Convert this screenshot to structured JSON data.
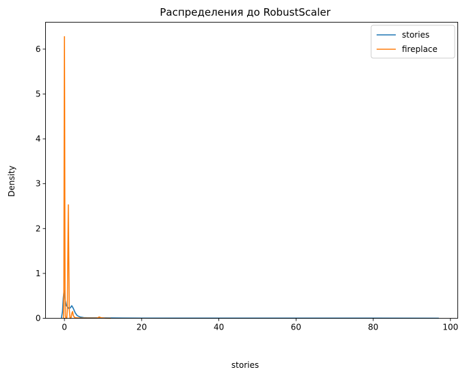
{
  "chart_data": {
    "type": "line",
    "title": "Распределения до RobustScaler",
    "xlabel": "stories",
    "ylabel": "Density",
    "xlim": [
      -4.9,
      101.9
    ],
    "ylim": [
      0,
      6.6
    ],
    "xticks": [
      0,
      20,
      40,
      60,
      80,
      100
    ],
    "yticks": [
      0,
      1,
      2,
      3,
      4,
      5,
      6
    ],
    "grid": false,
    "legend_position": "top-right",
    "series": [
      {
        "name": "stories",
        "color": "#1f77b4",
        "x": [
          -0.8,
          -0.5,
          -0.3,
          -0.1,
          0.0,
          0.2,
          0.5,
          0.8,
          1.1,
          1.5,
          1.9,
          2.3,
          2.8,
          3.3,
          4.0,
          5.0,
          6.0,
          8.0,
          10.0,
          15.0,
          20.0,
          40.0,
          60.0,
          80.0,
          97.0
        ],
        "y": [
          0.0,
          0.15,
          0.45,
          0.62,
          0.58,
          0.4,
          0.28,
          0.25,
          0.22,
          0.23,
          0.28,
          0.22,
          0.12,
          0.06,
          0.03,
          0.015,
          0.01,
          0.01,
          0.008,
          0.005,
          0.004,
          0.003,
          0.003,
          0.003,
          0.002
        ]
      },
      {
        "name": "fireplace",
        "color": "#ff7f0e",
        "x": [
          -0.25,
          -0.15,
          -0.05,
          0.0,
          0.05,
          0.15,
          0.25,
          0.4,
          0.6,
          0.75,
          0.9,
          1.0,
          1.1,
          1.25,
          1.45,
          1.6,
          1.75,
          1.95,
          2.1,
          2.3,
          2.6,
          3.0,
          4.0,
          6.0,
          8.5,
          9.0,
          9.5,
          10.5,
          12.0
        ],
        "y": [
          0.0,
          0.6,
          4.8,
          6.28,
          4.8,
          0.6,
          0.05,
          0.0,
          0.0,
          0.2,
          1.6,
          2.53,
          1.6,
          0.2,
          0.0,
          0.0,
          0.02,
          0.12,
          0.15,
          0.06,
          0.02,
          0.01,
          0.005,
          0.004,
          0.005,
          0.03,
          0.01,
          0.002,
          0.0
        ]
      }
    ]
  }
}
